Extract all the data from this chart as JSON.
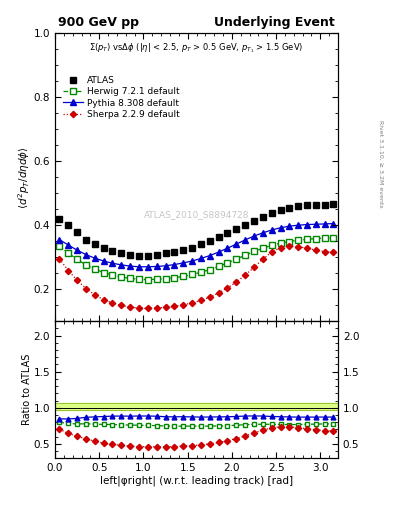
{
  "title_left": "900 GeV pp",
  "title_right": "Underlying Event",
  "subtitle": "Σ(p$_T$) vsΔφ (|η| < 2.5, p$_T$ > 0.5 GeV, p$_{T_1}$ > 1.5 GeV)",
  "ylabel_main": "$\\langle d^2 p_T/d\\eta d\\phi \\rangle$",
  "ylabel_ratio": "Ratio to ATLAS",
  "xlabel": "left|φright| (w.r.t. leading track) [rad]",
  "watermark": "ATLAS_2010_S8894728",
  "right_label": "Rivet 3.1.10, ≥ 3.2M events",
  "xlim": [
    0,
    3.2
  ],
  "ylim_main": [
    0.1,
    1.0
  ],
  "ylim_ratio": [
    0.3,
    2.2
  ],
  "yticks_main": [
    0.2,
    0.4,
    0.6,
    0.8,
    1.0
  ],
  "yticks_ratio": [
    0.5,
    1.0,
    1.5,
    2.0
  ],
  "legend_entries": [
    "ATLAS",
    "Herwig 7.2.1 default",
    "Pythia 8.308 default",
    "Sherpa 2.2.9 default"
  ],
  "atlas_x": [
    0.05,
    0.15,
    0.25,
    0.35,
    0.45,
    0.55,
    0.65,
    0.75,
    0.85,
    0.95,
    1.05,
    1.15,
    1.25,
    1.35,
    1.45,
    1.55,
    1.65,
    1.75,
    1.85,
    1.95,
    2.05,
    2.15,
    2.25,
    2.35,
    2.45,
    2.55,
    2.65,
    2.75,
    2.85,
    2.95,
    3.05,
    3.14
  ],
  "atlas_y": [
    0.42,
    0.4,
    0.378,
    0.355,
    0.34,
    0.328,
    0.318,
    0.312,
    0.308,
    0.305,
    0.305,
    0.307,
    0.312,
    0.317,
    0.322,
    0.33,
    0.34,
    0.35,
    0.362,
    0.375,
    0.388,
    0.4,
    0.413,
    0.425,
    0.438,
    0.448,
    0.455,
    0.46,
    0.462,
    0.463,
    0.464,
    0.465
  ],
  "herwig_x": [
    0.05,
    0.15,
    0.25,
    0.35,
    0.45,
    0.55,
    0.65,
    0.75,
    0.85,
    0.95,
    1.05,
    1.15,
    1.25,
    1.35,
    1.45,
    1.55,
    1.65,
    1.75,
    1.85,
    1.95,
    2.05,
    2.15,
    2.25,
    2.35,
    2.45,
    2.55,
    2.65,
    2.75,
    2.85,
    2.95,
    3.05,
    3.14
  ],
  "herwig_y": [
    0.335,
    0.313,
    0.293,
    0.276,
    0.263,
    0.252,
    0.244,
    0.238,
    0.234,
    0.231,
    0.23,
    0.231,
    0.233,
    0.236,
    0.24,
    0.246,
    0.253,
    0.261,
    0.271,
    0.282,
    0.294,
    0.306,
    0.318,
    0.328,
    0.337,
    0.344,
    0.349,
    0.353,
    0.356,
    0.358,
    0.36,
    0.361
  ],
  "pythia_x": [
    0.05,
    0.15,
    0.25,
    0.35,
    0.45,
    0.55,
    0.65,
    0.75,
    0.85,
    0.95,
    1.05,
    1.15,
    1.25,
    1.35,
    1.45,
    1.55,
    1.65,
    1.75,
    1.85,
    1.95,
    2.05,
    2.15,
    2.25,
    2.35,
    2.45,
    2.55,
    2.65,
    2.75,
    2.85,
    2.95,
    3.05,
    3.14
  ],
  "pythia_y": [
    0.355,
    0.338,
    0.322,
    0.308,
    0.297,
    0.288,
    0.281,
    0.276,
    0.272,
    0.27,
    0.27,
    0.271,
    0.273,
    0.277,
    0.282,
    0.288,
    0.296,
    0.305,
    0.316,
    0.328,
    0.341,
    0.354,
    0.366,
    0.376,
    0.385,
    0.392,
    0.397,
    0.4,
    0.402,
    0.403,
    0.404,
    0.405
  ],
  "sherpa_x": [
    0.05,
    0.15,
    0.25,
    0.35,
    0.45,
    0.55,
    0.65,
    0.75,
    0.85,
    0.95,
    1.05,
    1.15,
    1.25,
    1.35,
    1.45,
    1.55,
    1.65,
    1.75,
    1.85,
    1.95,
    2.05,
    2.15,
    2.25,
    2.35,
    2.45,
    2.55,
    2.65,
    2.75,
    2.85,
    2.95,
    3.05,
    3.14
  ],
  "sherpa_y": [
    0.295,
    0.258,
    0.228,
    0.202,
    0.182,
    0.167,
    0.157,
    0.149,
    0.144,
    0.141,
    0.14,
    0.141,
    0.143,
    0.146,
    0.151,
    0.157,
    0.165,
    0.175,
    0.188,
    0.204,
    0.222,
    0.244,
    0.268,
    0.294,
    0.316,
    0.33,
    0.335,
    0.333,
    0.328,
    0.322,
    0.317,
    0.315
  ],
  "atlas_color": "#000000",
  "herwig_color": "#008800",
  "pythia_color": "#0000cc",
  "sherpa_color": "#cc0000",
  "ratio_band_color": "#ddff88",
  "ratio_band_ymin": 0.97,
  "ratio_band_ymax": 1.07
}
